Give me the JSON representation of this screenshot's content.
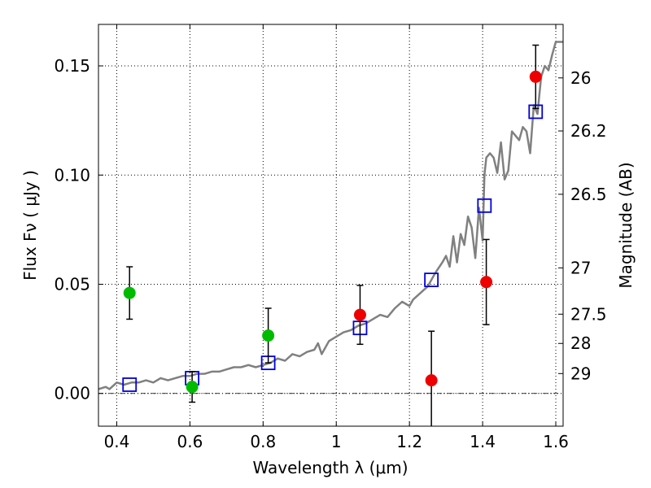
{
  "chart_data": {
    "type": "scatter",
    "xlabel": "Wavelength  λ (μm)",
    "ylabel": "Flux  Fν  ( μJy )",
    "y2label": "Magnitude (AB)",
    "xlim": [
      0.35,
      1.62
    ],
    "ylim": [
      -0.015,
      0.169
    ],
    "grid": true,
    "x_ticks": [
      0.4,
      0.6,
      0.8,
      1.0,
      1.2,
      1.4,
      1.6
    ],
    "x_tick_labels": [
      "0.4",
      "0.6",
      "0.8",
      "1",
      "1.2",
      "1.4",
      "1.6"
    ],
    "y_ticks": [
      0.0,
      0.05,
      0.1,
      0.15
    ],
    "y_tick_labels": [
      "0.00",
      "0.05",
      "0.10",
      "0.15"
    ],
    "y2_ticks": [
      {
        "label": "26",
        "flux": 0.1445
      },
      {
        "label": "26.2",
        "flux": 0.1202
      },
      {
        "label": "26.5",
        "flux": 0.0912
      },
      {
        "label": "27",
        "flux": 0.0575
      },
      {
        "label": "27.5",
        "flux": 0.0363
      },
      {
        "label": "28",
        "flux": 0.0229
      },
      {
        "label": "29",
        "flux": 0.0091
      }
    ],
    "series": [
      {
        "kind": "points",
        "color": "#00bb00",
        "marker": "circle",
        "x": [
          0.435,
          0.606,
          0.814
        ],
        "y": [
          0.046,
          0.003,
          0.0265
        ],
        "yerr": [
          0.012,
          0.007,
          0.0125
        ]
      },
      {
        "kind": "points",
        "color": "#ee0000",
        "marker": "circle",
        "x": [
          1.065,
          1.26,
          1.41,
          1.545
        ],
        "y": [
          0.036,
          0.006,
          0.051,
          0.145
        ],
        "yerr": [
          0.0135,
          0.0225,
          0.0195,
          0.0145
        ]
      },
      {
        "kind": "model_photometry",
        "color": "#0000dd",
        "marker": "open-square",
        "x": [
          0.435,
          0.606,
          0.814,
          1.065,
          1.26,
          1.405,
          1.545
        ],
        "y": [
          0.004,
          0.007,
          0.014,
          0.03,
          0.052,
          0.086,
          0.129
        ]
      },
      {
        "kind": "line",
        "color": "#808080",
        "x": [
          0.35,
          0.37,
          0.38,
          0.4,
          0.42,
          0.44,
          0.46,
          0.48,
          0.5,
          0.52,
          0.54,
          0.56,
          0.58,
          0.6,
          0.62,
          0.64,
          0.66,
          0.68,
          0.7,
          0.72,
          0.74,
          0.76,
          0.78,
          0.8,
          0.82,
          0.84,
          0.86,
          0.88,
          0.9,
          0.92,
          0.94,
          0.95,
          0.96,
          0.98,
          1.0,
          1.02,
          1.04,
          1.06,
          1.08,
          1.1,
          1.12,
          1.14,
          1.16,
          1.18,
          1.2,
          1.21,
          1.23,
          1.25,
          1.27,
          1.29,
          1.3,
          1.31,
          1.32,
          1.33,
          1.34,
          1.35,
          1.36,
          1.37,
          1.38,
          1.39,
          1.4,
          1.405,
          1.41,
          1.42,
          1.43,
          1.44,
          1.45,
          1.46,
          1.47,
          1.48,
          1.49,
          1.5,
          1.51,
          1.52,
          1.53,
          1.54,
          1.55,
          1.56,
          1.57,
          1.58,
          1.59,
          1.6,
          1.62
        ],
        "y": [
          0.002,
          0.003,
          0.002,
          0.005,
          0.004,
          0.005,
          0.005,
          0.006,
          0.005,
          0.007,
          0.006,
          0.007,
          0.008,
          0.008,
          0.009,
          0.009,
          0.01,
          0.01,
          0.011,
          0.012,
          0.012,
          0.013,
          0.012,
          0.013,
          0.014,
          0.016,
          0.015,
          0.018,
          0.017,
          0.019,
          0.02,
          0.023,
          0.018,
          0.024,
          0.026,
          0.028,
          0.029,
          0.031,
          0.032,
          0.034,
          0.036,
          0.035,
          0.039,
          0.042,
          0.04,
          0.043,
          0.046,
          0.049,
          0.055,
          0.06,
          0.063,
          0.058,
          0.072,
          0.06,
          0.073,
          0.068,
          0.081,
          0.076,
          0.062,
          0.085,
          0.07,
          0.1,
          0.108,
          0.11,
          0.108,
          0.101,
          0.115,
          0.098,
          0.102,
          0.12,
          0.118,
          0.116,
          0.122,
          0.12,
          0.11,
          0.132,
          0.128,
          0.145,
          0.15,
          0.148,
          0.155,
          0.161,
          0.161
        ]
      }
    ]
  }
}
